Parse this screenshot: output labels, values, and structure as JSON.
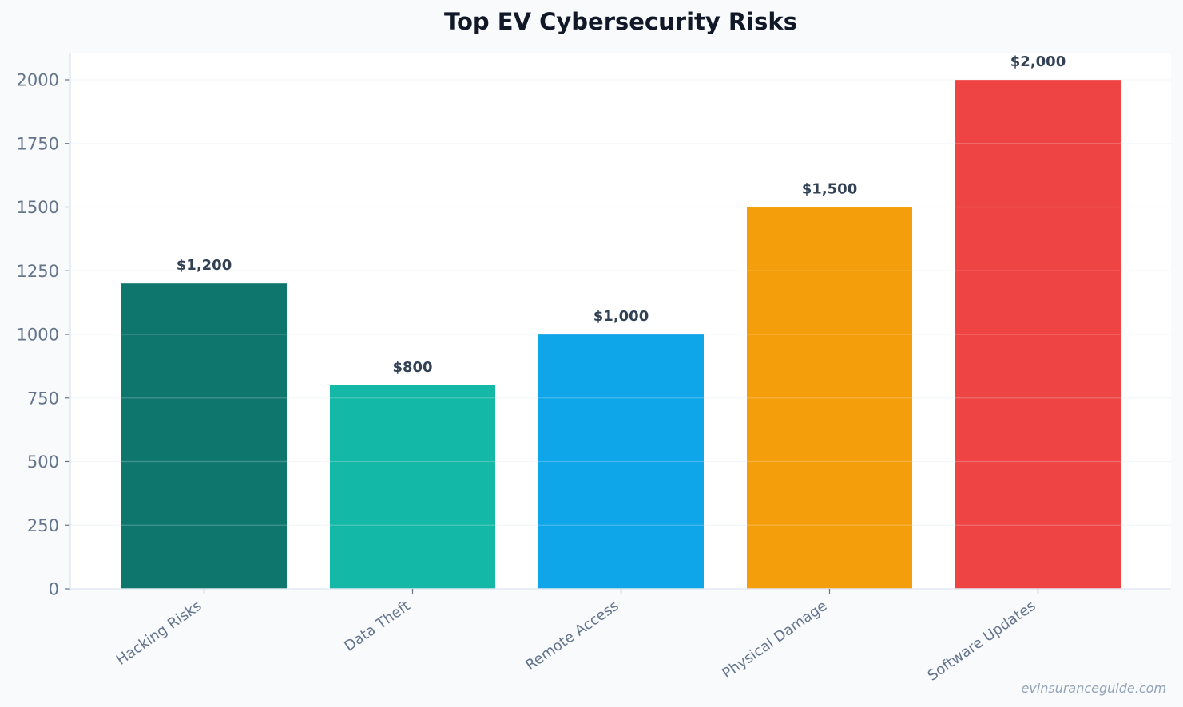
{
  "chart_data": {
    "type": "bar",
    "title": "Top EV Cybersecurity Risks",
    "xlabel": "",
    "ylabel": "",
    "categories": [
      "Hacking Risks",
      "Data Theft",
      "Remote Access",
      "Physical Damage",
      "Software Updates"
    ],
    "values": [
      1200,
      800,
      1000,
      1500,
      2000
    ],
    "data_labels": [
      "$1,200",
      "$800",
      "$1,000",
      "$1,500",
      "$2,000"
    ],
    "colors": [
      "#0f766e",
      "#14b8a6",
      "#0ea5e9",
      "#f59e0b",
      "#ef4444"
    ],
    "ylim": [
      0,
      2100
    ],
    "yticks": [
      0,
      250,
      500,
      750,
      1000,
      1250,
      1500,
      1750,
      2000
    ],
    "grid": true,
    "legend": "none"
  },
  "watermark": "evinsuranceguide.com"
}
